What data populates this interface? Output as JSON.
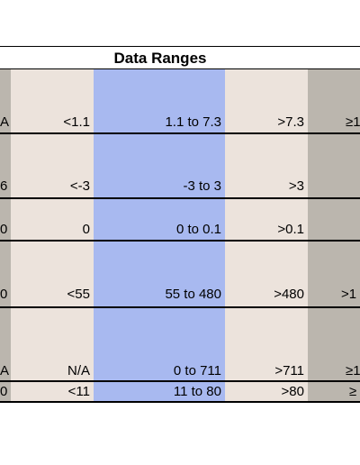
{
  "table": {
    "title": "Data Ranges",
    "colors": {
      "gray": "#bbb6ae",
      "beige": "#ece3dc",
      "blue": "#a8b9f0"
    },
    "rows": [
      {
        "c0": "A",
        "c1": "<1.1",
        "c2": "1.1 to 7.3",
        "c3": ">7.3",
        "c4": "≥1"
      },
      {
        "c0": "6",
        "c1": "<-3",
        "c2": "-3 to 3",
        "c3": ">3",
        "c4": ""
      },
      {
        "c0": "0",
        "c1": "0",
        "c2": "0 to 0.1",
        "c3": ">0.1",
        "c4": ""
      },
      {
        "c0": "0",
        "c1": "<55",
        "c2": "55 to 480",
        "c3": ">480",
        "c4": ">1"
      },
      {
        "c0": "A",
        "c1": "N/A",
        "c2": "0 to 711",
        "c3": ">711",
        "c4": "≥1"
      },
      {
        "c0": "0",
        "c1": "<11",
        "c2": "11  to 80",
        "c3": ">80",
        "c4": "≥"
      }
    ]
  }
}
